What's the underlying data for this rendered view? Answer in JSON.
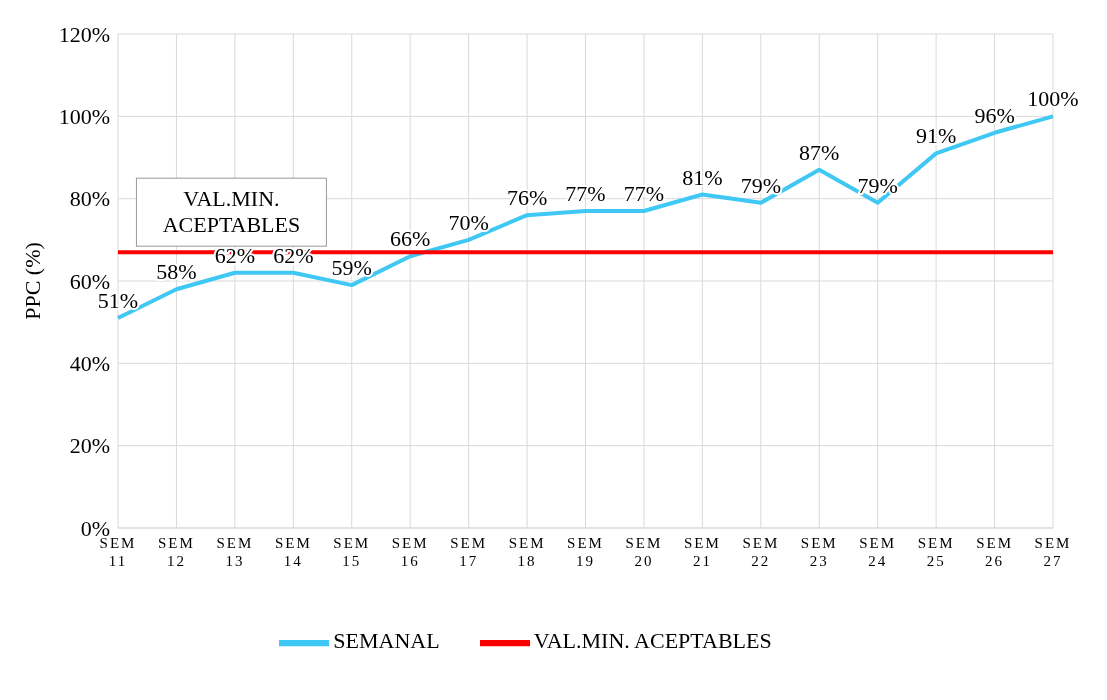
{
  "chart_data": {
    "type": "line",
    "ylabel": "PPC (%)",
    "categories": [
      "SEM 11",
      "SEM 12",
      "SEM 13",
      "SEM 14",
      "SEM 15",
      "SEM 16",
      "SEM 17",
      "SEM 18",
      "SEM 19",
      "SEM 20",
      "SEM 21",
      "SEM 22",
      "SEM 23",
      "SEM 24",
      "SEM 25",
      "SEM 26",
      "SEM 27"
    ],
    "series": [
      {
        "name": "SEMANAL",
        "color": "#3fc8f4",
        "values": [
          51,
          58,
          62,
          62,
          59,
          66,
          70,
          76,
          77,
          77,
          81,
          79,
          87,
          79,
          91,
          96,
          100
        ],
        "value_labels": [
          "51%",
          "58%",
          "62%",
          "62%",
          "59%",
          "66%",
          "70%",
          "76%",
          "77%",
          "77%",
          "81%",
          "79%",
          "87%",
          "79%",
          "91%",
          "96%",
          "100%"
        ]
      },
      {
        "name": "VAL.MIN. ACEPTABLES",
        "color": "#ff0000",
        "values": [
          67,
          67,
          67,
          67,
          67,
          67,
          67,
          67,
          67,
          67,
          67,
          67,
          67,
          67,
          67,
          67,
          67
        ]
      }
    ],
    "annotations": [
      {
        "text": "VAL.MIN. ACEPTABLES",
        "x": "SEM 12",
        "y": 67
      }
    ],
    "ylim": [
      0,
      120
    ],
    "yticks": [
      {
        "value": 0,
        "label": "0%"
      },
      {
        "value": 20,
        "label": "20%"
      },
      {
        "value": 40,
        "label": "40%"
      },
      {
        "value": 60,
        "label": "60%"
      },
      {
        "value": 80,
        "label": "80%"
      },
      {
        "value": 100,
        "label": "100%"
      },
      {
        "value": 120,
        "label": "120%"
      }
    ],
    "grid": true,
    "legend": "bottom",
    "marker": "none",
    "line_style": "solid"
  }
}
